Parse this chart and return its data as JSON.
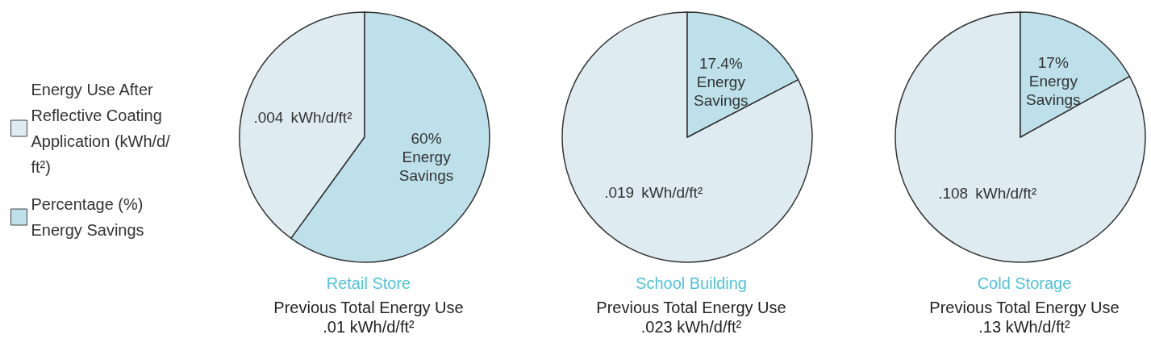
{
  "chart_data": [
    {
      "type": "pie",
      "title": "Retail Store",
      "subtitle": "Previous Total Energy Use\n.01 kWh/d/ft²",
      "categories": [
        "Energy Use After Reflective Coating Application (kWh/d/ft²)",
        "Percentage (%) Energy Savings"
      ],
      "values": [
        0.004,
        0.006
      ],
      "colors": [
        "#deebf0",
        "#bde0ea"
      ],
      "value_labels": [
        ".004  kWh/d/ft²",
        null
      ],
      "annotations": [
        "60%\nEnergy\nSavings"
      ],
      "legend": "left"
    },
    {
      "type": "pie",
      "title": "School Building",
      "subtitle": "Previous Total Energy Use\n.023 kWh/d/ft²",
      "categories": [
        null,
        null
      ],
      "values": [
        0.019,
        0.004
      ],
      "colors": [
        "#deebf0",
        "#bde0ea"
      ],
      "value_labels": [
        ".019  kWh/d/ft²",
        null
      ],
      "annotations": [
        "17.4%\nEnergy\nSavings"
      ]
    },
    {
      "type": "pie",
      "title": "Cold Storage",
      "subtitle": "Previous Total Energy Use\n.13 kWh/d/ft²",
      "categories": [
        null,
        null
      ],
      "values": [
        0.108,
        0.022
      ],
      "colors": [
        "#deebf0",
        "#bde0ea"
      ],
      "value_labels": [
        ".108  kWh/d/ft²",
        null
      ],
      "annotations": [
        "17%\nEnergy\nSavings"
      ]
    }
  ]
}
